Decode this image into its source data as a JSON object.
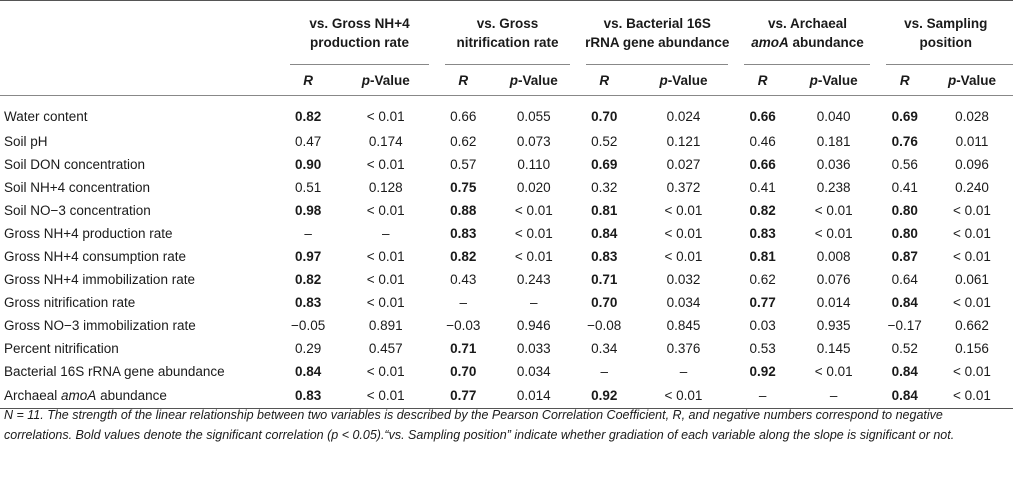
{
  "headers": {
    "groups": [
      {
        "line1": "vs. Gross NH",
        "line1_sub": "4",
        "line1_sup": "+",
        "line2": "production rate"
      },
      {
        "line1": "vs. Gross",
        "line2": "nitrification rate"
      },
      {
        "line1": "vs. Bacterial 16S",
        "line2": "rRNA gene abundance"
      },
      {
        "line1": "vs. Archaeal",
        "line2_pre": "",
        "line2_italic": "amoA",
        "line2_post": " abundance"
      },
      {
        "line1": "vs. Sampling",
        "line2": "position"
      }
    ],
    "r_label": "R",
    "p_label_italic": "p",
    "p_label_rest": "-Value"
  },
  "rows": [
    {
      "label": "Water content",
      "cells": [
        [
          "0.82",
          "b"
        ],
        [
          "< 0.01",
          ""
        ],
        [
          "0.66",
          ""
        ],
        [
          "0.055",
          ""
        ],
        [
          "0.70",
          "b"
        ],
        [
          "0.024",
          ""
        ],
        [
          "0.66",
          "b"
        ],
        [
          "0.040",
          ""
        ],
        [
          "0.69",
          "b"
        ],
        [
          "0.028",
          ""
        ]
      ]
    },
    {
      "label": "Soil pH",
      "cells": [
        [
          "0.47",
          ""
        ],
        [
          "0.174",
          ""
        ],
        [
          "0.62",
          ""
        ],
        [
          "0.073",
          ""
        ],
        [
          "0.52",
          ""
        ],
        [
          "0.121",
          ""
        ],
        [
          "0.46",
          ""
        ],
        [
          "0.181",
          ""
        ],
        [
          "0.76",
          "b"
        ],
        [
          "0.011",
          ""
        ]
      ]
    },
    {
      "label": "Soil DON concentration",
      "cells": [
        [
          "0.90",
          "b"
        ],
        [
          "< 0.01",
          ""
        ],
        [
          "0.57",
          ""
        ],
        [
          "0.110",
          ""
        ],
        [
          "0.69",
          "b"
        ],
        [
          "0.027",
          ""
        ],
        [
          "0.66",
          "b"
        ],
        [
          "0.036",
          ""
        ],
        [
          "0.56",
          ""
        ],
        [
          "0.096",
          ""
        ]
      ]
    },
    {
      "label_pre": "Soil NH",
      "label_sub": "4",
      "label_sup": "+",
      "label_post": " concentration",
      "cells": [
        [
          "0.51",
          ""
        ],
        [
          "0.128",
          ""
        ],
        [
          "0.75",
          "b"
        ],
        [
          "0.020",
          ""
        ],
        [
          "0.32",
          ""
        ],
        [
          "0.372",
          ""
        ],
        [
          "0.41",
          ""
        ],
        [
          "0.238",
          ""
        ],
        [
          "0.41",
          ""
        ],
        [
          "0.240",
          ""
        ]
      ]
    },
    {
      "label_pre": "Soil NO",
      "label_sub": "3",
      "label_sup": "−",
      "label_post": " concentration",
      "cells": [
        [
          "0.98",
          "b"
        ],
        [
          "< 0.01",
          ""
        ],
        [
          "0.88",
          "b"
        ],
        [
          "< 0.01",
          ""
        ],
        [
          "0.81",
          "b"
        ],
        [
          "< 0.01",
          ""
        ],
        [
          "0.82",
          "b"
        ],
        [
          "< 0.01",
          ""
        ],
        [
          "0.80",
          "b"
        ],
        [
          "< 0.01",
          ""
        ]
      ]
    },
    {
      "label_pre": "Gross NH",
      "label_sub": "4",
      "label_sup": "+",
      "label_post": " production rate",
      "cells": [
        [
          "–",
          ""
        ],
        [
          "–",
          ""
        ],
        [
          "0.83",
          "b"
        ],
        [
          "< 0.01",
          ""
        ],
        [
          "0.84",
          "b"
        ],
        [
          "< 0.01",
          ""
        ],
        [
          "0.83",
          "b"
        ],
        [
          "< 0.01",
          ""
        ],
        [
          "0.80",
          "b"
        ],
        [
          "< 0.01",
          ""
        ]
      ]
    },
    {
      "label_pre": "Gross NH",
      "label_sub": "4",
      "label_sup": "+",
      "label_post": " consumption rate",
      "cells": [
        [
          "0.97",
          "b"
        ],
        [
          "< 0.01",
          ""
        ],
        [
          "0.82",
          "b"
        ],
        [
          "< 0.01",
          ""
        ],
        [
          "0.83",
          "b"
        ],
        [
          "< 0.01",
          ""
        ],
        [
          "0.81",
          "b"
        ],
        [
          "0.008",
          ""
        ],
        [
          "0.87",
          "b"
        ],
        [
          "< 0.01",
          ""
        ]
      ]
    },
    {
      "label_pre": "Gross NH",
      "label_sub": "4",
      "label_sup": "+",
      "label_post": " immobilization rate",
      "cells": [
        [
          "0.82",
          "b"
        ],
        [
          "< 0.01",
          ""
        ],
        [
          "0.43",
          ""
        ],
        [
          "0.243",
          ""
        ],
        [
          "0.71",
          "b"
        ],
        [
          "0.032",
          ""
        ],
        [
          "0.62",
          ""
        ],
        [
          "0.076",
          ""
        ],
        [
          "0.64",
          ""
        ],
        [
          "0.061",
          ""
        ]
      ]
    },
    {
      "label": "Gross nitrification rate",
      "cells": [
        [
          "0.83",
          "b"
        ],
        [
          "< 0.01",
          ""
        ],
        [
          "–",
          ""
        ],
        [
          "–",
          ""
        ],
        [
          "0.70",
          "b"
        ],
        [
          "0.034",
          ""
        ],
        [
          "0.77",
          "b"
        ],
        [
          "0.014",
          ""
        ],
        [
          "0.84",
          "b"
        ],
        [
          "< 0.01",
          ""
        ]
      ]
    },
    {
      "label_pre": "Gross NO",
      "label_sub": "3",
      "label_sup": "−",
      "label_post": " immobilization rate",
      "cells": [
        [
          "−0.05",
          ""
        ],
        [
          "0.891",
          ""
        ],
        [
          "−0.03",
          ""
        ],
        [
          "0.946",
          ""
        ],
        [
          "−0.08",
          ""
        ],
        [
          "0.845",
          ""
        ],
        [
          "0.03",
          ""
        ],
        [
          "0.935",
          ""
        ],
        [
          "−0.17",
          ""
        ],
        [
          "0.662",
          ""
        ]
      ]
    },
    {
      "label": "Percent nitrification",
      "cells": [
        [
          "0.29",
          ""
        ],
        [
          "0.457",
          ""
        ],
        [
          "0.71",
          "b"
        ],
        [
          "0.033",
          ""
        ],
        [
          "0.34",
          ""
        ],
        [
          "0.376",
          ""
        ],
        [
          "0.53",
          ""
        ],
        [
          "0.145",
          ""
        ],
        [
          "0.52",
          ""
        ],
        [
          "0.156",
          ""
        ]
      ]
    },
    {
      "label": "Bacterial 16S rRNA gene abundance",
      "cells": [
        [
          "0.84",
          "b"
        ],
        [
          "< 0.01",
          ""
        ],
        [
          "0.70",
          "b"
        ],
        [
          "0.034",
          ""
        ],
        [
          "–",
          ""
        ],
        [
          "–",
          ""
        ],
        [
          "0.92",
          "b"
        ],
        [
          "< 0.01",
          ""
        ],
        [
          "0.84",
          "b"
        ],
        [
          "< 0.01",
          ""
        ]
      ]
    },
    {
      "label_pre": "Archaeal ",
      "label_italic": "amoA",
      "label_post": " abundance",
      "cells": [
        [
          "0.83",
          "b"
        ],
        [
          "< 0.01",
          ""
        ],
        [
          "0.77",
          "b"
        ],
        [
          "0.014",
          ""
        ],
        [
          "0.92",
          "b"
        ],
        [
          "< 0.01",
          ""
        ],
        [
          "–",
          ""
        ],
        [
          "–",
          ""
        ],
        [
          "0.84",
          "b"
        ],
        [
          "< 0.01",
          ""
        ]
      ]
    }
  ],
  "footnote": {
    "n_text": "N",
    "n_eq": " = 11. ",
    "body": "The strength of the linear relationship between two variables is described by the Pearson Correlation Coefficient, R, and negative numbers correspond to negative correlations. Bold values denote the significant correlation (p < 0.05).“vs. Sampling position” indicate whether gradiation of each variable along the slope is significant or not."
  }
}
